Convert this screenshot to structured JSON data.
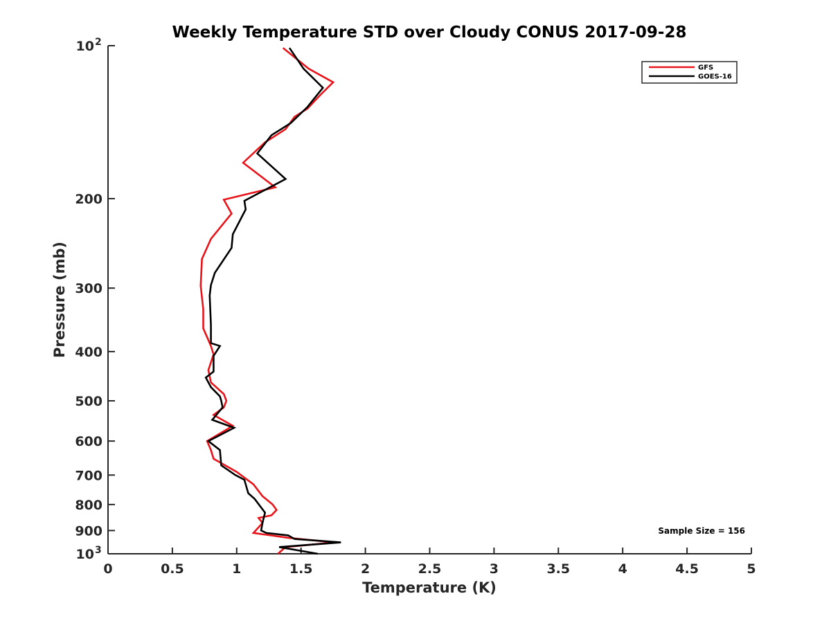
{
  "chart_data": {
    "type": "line",
    "title": "Weekly Temperature STD over Cloudy CONUS 2017-09-28",
    "xlabel": "Temperature (K)",
    "ylabel": "Pressure (mb)",
    "xlim": [
      0,
      5
    ],
    "ylim": [
      100,
      1000
    ],
    "y_scale": "log",
    "y_reversed": true,
    "grid": false,
    "legend_position": "top-right",
    "x_ticks": [
      0,
      0.5,
      1,
      1.5,
      2,
      2.5,
      3,
      3.5,
      4,
      4.5,
      5
    ],
    "x_tick_labels": [
      "0",
      "0.5",
      "1",
      "1.5",
      "2",
      "2.5",
      "3",
      "3.5",
      "4",
      "4.5",
      "5"
    ],
    "y_ticks": [
      100,
      200,
      300,
      400,
      500,
      600,
      700,
      800,
      900,
      1000
    ],
    "y_tick_labels": [
      {
        "base": "10",
        "exp": "2"
      },
      {
        "base": "200",
        "exp": ""
      },
      {
        "base": "300",
        "exp": ""
      },
      {
        "base": "400",
        "exp": ""
      },
      {
        "base": "500",
        "exp": ""
      },
      {
        "base": "600",
        "exp": ""
      },
      {
        "base": "700",
        "exp": ""
      },
      {
        "base": "800",
        "exp": ""
      },
      {
        "base": "900",
        "exp": ""
      },
      {
        "base": "10",
        "exp": "3"
      }
    ],
    "annotation": "Sample Size = 156",
    "series": [
      {
        "name": "GFS",
        "color": "#e8141a",
        "x": [
          1.36,
          1.56,
          1.75,
          1.65,
          1.55,
          1.45,
          1.38,
          1.22,
          1.05,
          1.3,
          0.9,
          0.96,
          0.8,
          0.73,
          0.72,
          0.74,
          0.74,
          0.8,
          0.82,
          0.78,
          0.8,
          0.9,
          0.92,
          0.9,
          0.82,
          0.97,
          0.77,
          0.8,
          0.82,
          1.0,
          1.13,
          1.2,
          1.28,
          1.31,
          1.27,
          1.17,
          1.2,
          1.13,
          1.4,
          1.76,
          1.38,
          1.32
        ],
        "y": [
          101,
          111,
          118,
          125,
          133,
          138,
          146,
          155,
          170,
          190,
          201,
          214,
          240,
          263,
          297,
          330,
          360,
          390,
          405,
          435,
          460,
          485,
          500,
          515,
          533,
          560,
          600,
          625,
          650,
          690,
          730,
          770,
          800,
          820,
          840,
          850,
          870,
          910,
          930,
          950,
          970,
          1000
        ]
      },
      {
        "name": "GOES-16",
        "color": "#000000",
        "x": [
          1.41,
          1.52,
          1.67,
          1.55,
          1.42,
          1.27,
          1.16,
          1.38,
          1.06,
          1.07,
          0.97,
          0.96,
          0.83,
          0.8,
          0.79,
          0.8,
          0.8,
          0.87,
          0.82,
          0.82,
          0.76,
          0.8,
          0.87,
          0.88,
          0.89,
          0.81,
          0.98,
          0.78,
          0.87,
          0.88,
          0.99,
          1.06,
          1.09,
          1.14,
          1.22,
          1.2,
          1.19,
          1.23,
          1.4,
          1.45,
          1.81,
          1.33,
          1.63
        ],
        "y": [
          101,
          111,
          121,
          132,
          142,
          150,
          163,
          183,
          202,
          210,
          235,
          250,
          280,
          296,
          310,
          355,
          385,
          390,
          408,
          438,
          450,
          470,
          490,
          500,
          515,
          545,
          565,
          600,
          625,
          670,
          700,
          715,
          760,
          780,
          830,
          870,
          900,
          910,
          920,
          935,
          950,
          970,
          1000
        ]
      }
    ]
  }
}
